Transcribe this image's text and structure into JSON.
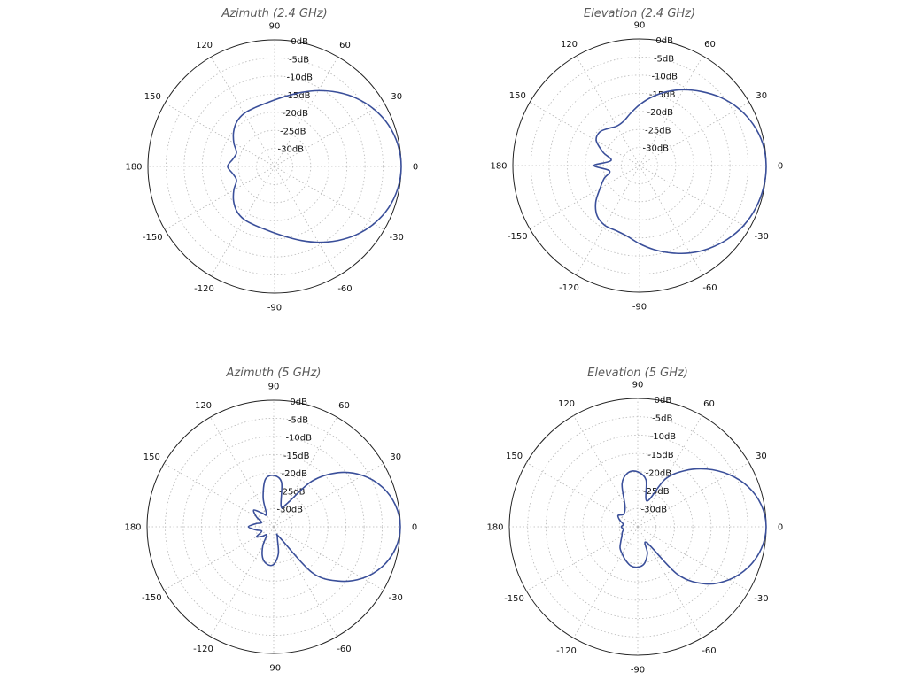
{
  "chart_data": [
    {
      "type": "polar-line",
      "title": "Azimuth (2.4 GHz)",
      "angle_ticks": [
        "0",
        "30",
        "60",
        "90",
        "120",
        "150",
        "180",
        "-150",
        "-120",
        "-90",
        "-60",
        "-30"
      ],
      "angle_tick_degrees": [
        0,
        30,
        60,
        90,
        120,
        150,
        180,
        -150,
        -120,
        -90,
        -60,
        -30
      ],
      "radial_ticks": [
        "0dB",
        "-5dB",
        "-10dB",
        "-15dB",
        "-20dB",
        "-25dB",
        "-30dB"
      ],
      "rlim_db": [
        -35,
        0
      ],
      "grid": true,
      "series": [
        {
          "angle_deg": [
            0,
            10,
            20,
            30,
            40,
            50,
            60,
            70,
            80,
            90,
            100,
            110,
            120,
            130,
            140,
            150,
            160,
            170,
            180,
            -170,
            -160,
            -150,
            -140,
            -130,
            -120,
            -110,
            -100,
            -90,
            -80,
            -70,
            -60,
            -50,
            -40,
            -30,
            -20,
            -10
          ],
          "gain_db": [
            0,
            -0.4,
            -1.5,
            -3.3,
            -5.6,
            -8.2,
            -10.8,
            -13.2,
            -15.2,
            -16.6,
            -17.5,
            -17.9,
            -18.1,
            -18.8,
            -20.2,
            -22.0,
            -23.8,
            -23.3,
            -22.0,
            -23.3,
            -23.8,
            -22.0,
            -20.2,
            -18.8,
            -18.1,
            -17.9,
            -17.5,
            -16.6,
            -15.2,
            -13.2,
            -10.8,
            -8.2,
            -5.6,
            -3.3,
            -1.5,
            -0.4
          ]
        }
      ]
    },
    {
      "type": "polar-line",
      "title": "Elevation (2.4 GHz)",
      "angle_ticks": [
        "0",
        "30",
        "60",
        "90",
        "120",
        "150",
        "180",
        "-150",
        "-120",
        "-90",
        "-60",
        "-30"
      ],
      "angle_tick_degrees": [
        0,
        30,
        60,
        90,
        120,
        150,
        180,
        -150,
        -120,
        -90,
        -60,
        -30
      ],
      "radial_ticks": [
        "0dB",
        "-5dB",
        "-10dB",
        "-15dB",
        "-20dB",
        "-25dB",
        "-30dB"
      ],
      "rlim_db": [
        -35,
        0
      ],
      "grid": true,
      "series": [
        {
          "angle_deg": [
            0,
            10,
            20,
            30,
            40,
            50,
            60,
            70,
            80,
            90,
            100,
            110,
            120,
            130,
            140,
            150,
            160,
            170,
            180,
            -170,
            -160,
            -150,
            -140,
            -130,
            -120,
            -110,
            -100,
            -90,
            -80,
            -70,
            -60,
            -50,
            -40,
            -30,
            -20,
            -10
          ],
          "gain_db": [
            0,
            -0.4,
            -1.6,
            -3.4,
            -5.7,
            -8.3,
            -10.8,
            -13.3,
            -15.8,
            -18.2,
            -20.4,
            -22.0,
            -22.4,
            -21.6,
            -20.6,
            -21.2,
            -24.3,
            -27.0,
            -22.4,
            -26.6,
            -24.6,
            -22.4,
            -19.2,
            -16.8,
            -15.9,
            -15.9,
            -15.2,
            -13.4,
            -11.4,
            -9.3,
            -7.1,
            -5.1,
            -3.3,
            -1.8,
            -0.8,
            -0.2
          ]
        }
      ]
    },
    {
      "type": "polar-line",
      "title": "Azimuth (5 GHz)",
      "angle_ticks": [
        "0",
        "30",
        "60",
        "90",
        "120",
        "150",
        "180",
        "-150",
        "-120",
        "-90",
        "-60",
        "-30"
      ],
      "angle_tick_degrees": [
        0,
        30,
        60,
        90,
        120,
        150,
        180,
        -150,
        -120,
        -90,
        -60,
        -30
      ],
      "radial_ticks": [
        "0dB",
        "-5dB",
        "-10dB",
        "-15dB",
        "-20dB",
        "-25dB",
        "-30dB"
      ],
      "rlim_db": [
        -35,
        0
      ],
      "grid": true,
      "series": [
        {
          "angle_deg": [
            0,
            10,
            20,
            30,
            40,
            50,
            60,
            70,
            80,
            90,
            100,
            110,
            120,
            130,
            140,
            150,
            160,
            170,
            180,
            -170,
            -160,
            -150,
            -140,
            -130,
            -120,
            -110,
            -100,
            -90,
            -80,
            -70,
            -60,
            -50,
            -40,
            -30,
            -20,
            -10
          ],
          "gain_db": [
            0,
            -0.8,
            -3.0,
            -6.6,
            -11.7,
            -18.5,
            -27.5,
            -29.0,
            -22.5,
            -20.8,
            -21.7,
            -26.5,
            -31.0,
            -30.0,
            -27.8,
            -29.5,
            -31.5,
            -30.0,
            -28.0,
            -30.0,
            -31.5,
            -29.5,
            -31.0,
            -32.0,
            -29.0,
            -26.0,
            -24.5,
            -24.6,
            -27.5,
            -32.0,
            -31.5,
            -18.5,
            -11.7,
            -6.6,
            -3.0,
            -0.8
          ]
        }
      ]
    },
    {
      "type": "polar-line",
      "title": "Elevation (5 GHz)",
      "angle_ticks": [
        "0",
        "30",
        "60",
        "90",
        "120",
        "150",
        "180",
        "-150",
        "-120",
        "-90",
        "-60",
        "-30"
      ],
      "angle_tick_degrees": [
        0,
        30,
        60,
        90,
        120,
        150,
        180,
        -150,
        -120,
        -90,
        -60,
        -30
      ],
      "radial_ticks": [
        "0dB",
        "-5dB",
        "-10dB",
        "-15dB",
        "-20dB",
        "-25dB",
        "-30dB"
      ],
      "rlim_db": [
        -35,
        0
      ],
      "grid": true,
      "series": [
        {
          "angle_deg": [
            0,
            10,
            20,
            30,
            40,
            50,
            60,
            70,
            80,
            90,
            100,
            110,
            120,
            130,
            140,
            150,
            160,
            170,
            180,
            -170,
            -160,
            -150,
            -140,
            -130,
            -120,
            -110,
            -100,
            -90,
            -80,
            -70,
            -60,
            -50,
            -40,
            -30,
            -20,
            -10
          ],
          "gain_db": [
            0,
            -0.8,
            -3.0,
            -6.4,
            -10.5,
            -15.0,
            -20.0,
            -27.5,
            -22.0,
            -20.0,
            -20.0,
            -22.5,
            -28.0,
            -29.5,
            -29.8,
            -28.8,
            -29.8,
            -31.0,
            -30.5,
            -31.0,
            -30.5,
            -30.0,
            -29.0,
            -27.5,
            -26.5,
            -25.3,
            -24.2,
            -24.0,
            -24.8,
            -27.3,
            -30.0,
            -18.0,
            -10.8,
            -6.2,
            -2.9,
            -0.8
          ]
        }
      ]
    }
  ],
  "colors": {
    "trace": "#3a4f9a"
  }
}
